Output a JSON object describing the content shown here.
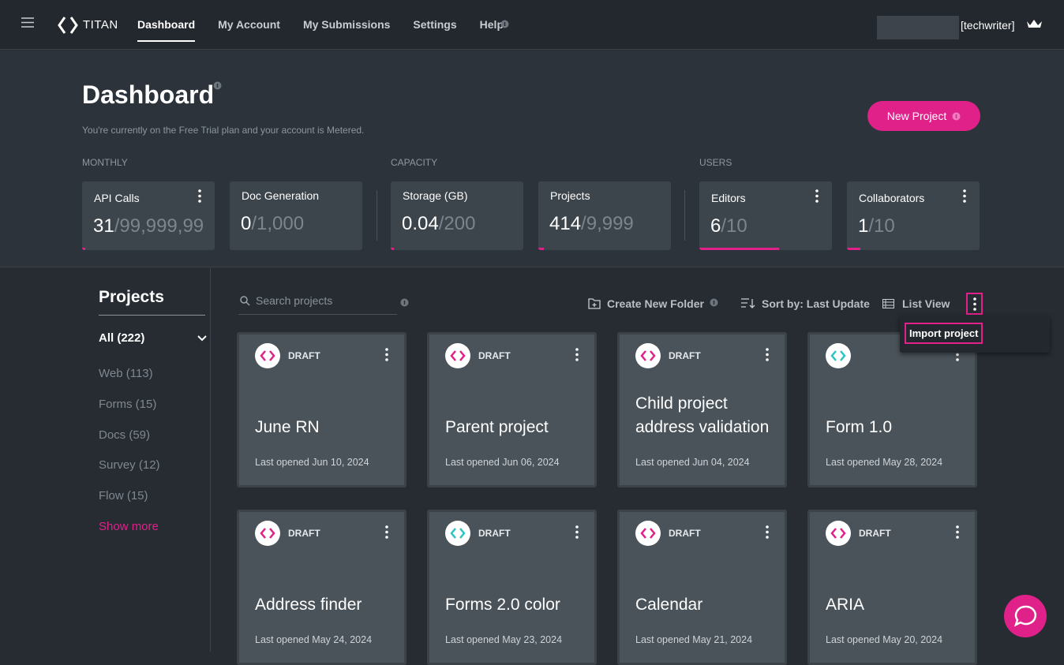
{
  "nav": {
    "brand": "TITAN",
    "links": [
      "Dashboard",
      "My Account",
      "My Submissions",
      "Settings",
      "Help"
    ],
    "active": 0,
    "user": "[techwriter]"
  },
  "header": {
    "title": "Dashboard",
    "subtitle": "You're currently on the Free Trial plan and your account is Metered.",
    "new_project": "New Project"
  },
  "stats": [
    {
      "label": "MONTHLY",
      "cards": [
        {
          "name": "API Calls",
          "used": "31",
          "limit": "/99,999,99",
          "menu": true
        },
        {
          "name": "Doc Generation",
          "used": "0",
          "limit": "/1,000",
          "menu": false
        }
      ]
    },
    {
      "label": "CAPACITY",
      "cards": [
        {
          "name": "Storage (GB)",
          "used": "0.04",
          "limit": "/200",
          "menu": false
        },
        {
          "name": "Projects",
          "used": "414",
          "limit": "/9,999",
          "menu": false
        }
      ]
    },
    {
      "label": "USERS",
      "cards": [
        {
          "name": "Editors",
          "used": "6",
          "limit": "/10",
          "menu": true
        },
        {
          "name": "Collaborators",
          "used": "1",
          "limit": "/10",
          "menu": true
        }
      ]
    }
  ],
  "sidebar": {
    "title": "Projects",
    "filters": [
      "All (222)",
      "Web (113)",
      "Forms (15)",
      "Docs (59)",
      "Survey (12)",
      "Flow (15)"
    ],
    "show_more": "Show more"
  },
  "toolbar": {
    "search": "Search projects",
    "create_folder": "Create New Folder",
    "sort": "Sort by: Last Update",
    "view": "List View",
    "menu_item": "Import project"
  },
  "projects": [
    {
      "status": "DRAFT",
      "name": "June RN",
      "opened": "Last opened Jun 10, 2024",
      "icon_color": "#e0218a"
    },
    {
      "status": "DRAFT",
      "name": "Parent project",
      "opened": "Last opened Jun 06, 2024",
      "icon_color": "#e0218a"
    },
    {
      "status": "DRAFT",
      "name": "Child project address validation",
      "opened": "Last opened Jun 04, 2024",
      "icon_color": "#e0218a"
    },
    {
      "status": null,
      "name": "Form 1.0",
      "opened": "Last opened May 28, 2024",
      "icon_color": "#2ec4c4"
    },
    {
      "status": "DRAFT",
      "name": "Address finder",
      "opened": "Last opened May 24, 2024",
      "icon_color": "#e0218a"
    },
    {
      "status": "DRAFT",
      "name": "Forms 2.0 color",
      "opened": "Last opened May 23, 2024",
      "icon_color": "#2ec4c4"
    },
    {
      "status": "DRAFT",
      "name": "Calendar",
      "opened": "Last opened May 21, 2024",
      "icon_color": "#e0218a"
    },
    {
      "status": "DRAFT",
      "name": "ARIA",
      "opened": "Last opened May 20, 2024",
      "icon_color": "#e0218a"
    }
  ]
}
